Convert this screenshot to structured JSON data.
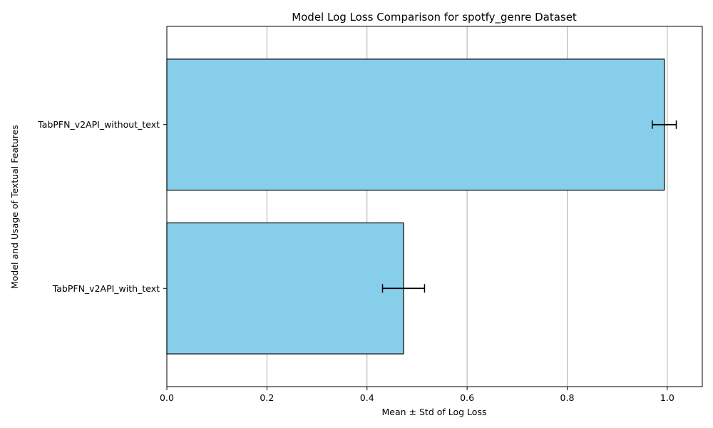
{
  "chart_data": {
    "type": "bar",
    "orientation": "horizontal",
    "title": "Model Log Loss Comparison for spotfy_genre Dataset",
    "xlabel": "Mean ± Std of Log Loss",
    "ylabel": "Model and Usage of Textual Features",
    "categories": [
      "TabPFN_v2API_without_text",
      "TabPFN_v2API_with_text"
    ],
    "values": [
      0.994,
      0.473
    ],
    "errors": [
      0.024,
      0.042
    ],
    "xlim": [
      0.0,
      1.07
    ],
    "xticks": [
      0.0,
      0.2,
      0.4,
      0.6,
      0.8,
      1.0
    ],
    "xtick_labels": [
      "0.0",
      "0.2",
      "0.4",
      "0.6",
      "0.8",
      "1.0"
    ],
    "grid": "x",
    "colors": {
      "bar_fill": "#87ceeb",
      "bar_edge": "#000000",
      "error_bar": "#000000",
      "grid": "#b0b0b0"
    }
  }
}
